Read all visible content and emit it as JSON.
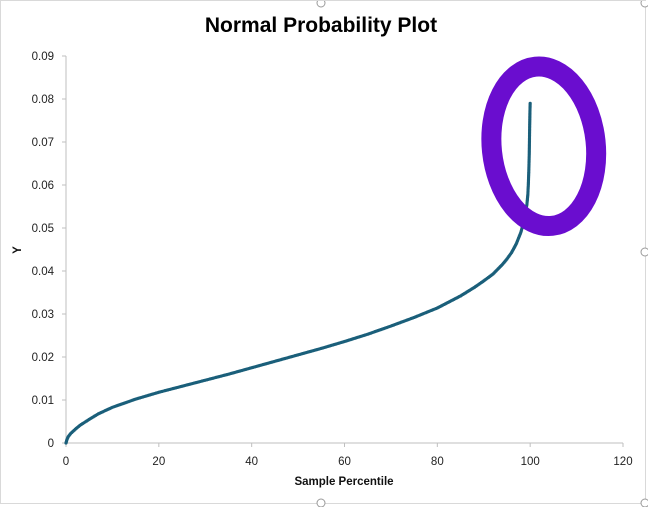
{
  "colors": {
    "series": "#1a5f7a",
    "annotation": "#6a0dcf",
    "axis": "#bfbfbf",
    "text": "#000000"
  },
  "chart_data": {
    "type": "scatter",
    "title": "Normal Probability Plot",
    "xlabel": "Sample Percentile",
    "ylabel": "Y",
    "xlim": [
      0,
      120
    ],
    "ylim": [
      0,
      0.09
    ],
    "x_ticks": [
      "0",
      "20",
      "40",
      "60",
      "80",
      "100",
      "120"
    ],
    "y_ticks": [
      "0",
      "0.01",
      "0.02",
      "0.03",
      "0.04",
      "0.05",
      "0.06",
      "0.07",
      "0.08",
      "0.09"
    ],
    "grid": false,
    "legend": "none",
    "series": [
      {
        "marker": "small-dot",
        "x": [
          0,
          0.2,
          0.5,
          1,
          2,
          3,
          5,
          7,
          10,
          15,
          20,
          25,
          30,
          35,
          40,
          45,
          50,
          55,
          60,
          65,
          70,
          75,
          80,
          85,
          88,
          90,
          92,
          94,
          95,
          96,
          97,
          98,
          98.5,
          99,
          99.3,
          99.5,
          99.6,
          99.7,
          99.8,
          99.85,
          99.9,
          99.95,
          100
        ],
        "y": [
          0,
          0.0008,
          0.0015,
          0.0022,
          0.0032,
          0.0041,
          0.0055,
          0.0068,
          0.0083,
          0.0102,
          0.0118,
          0.0132,
          0.0146,
          0.016,
          0.0175,
          0.019,
          0.0205,
          0.022,
          0.0236,
          0.0253,
          0.0272,
          0.0292,
          0.0314,
          0.0342,
          0.0362,
          0.0377,
          0.0393,
          0.0415,
          0.0428,
          0.0443,
          0.0463,
          0.049,
          0.051,
          0.0535,
          0.0555,
          0.0578,
          0.06,
          0.063,
          0.067,
          0.0705,
          0.074,
          0.077,
          0.079
        ]
      }
    ],
    "annotations": [
      {
        "type": "hand-drawn-circle",
        "color": "#6a0dcf",
        "x_range": [
          90,
          115
        ],
        "y_range": [
          0.049,
          0.089
        ]
      }
    ]
  }
}
